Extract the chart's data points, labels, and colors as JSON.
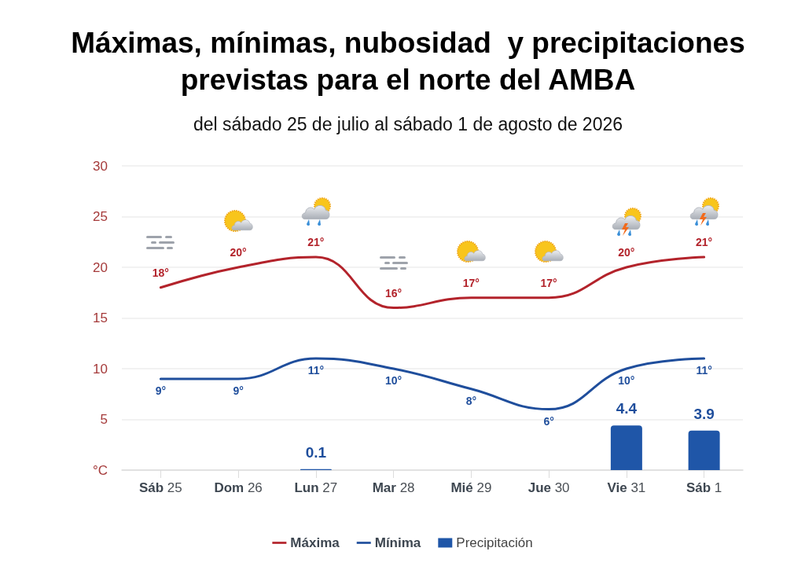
{
  "chart_data": {
    "type": "line",
    "title": "Máximas, mínimas, nubosidad  y precipitaciones previstas para el norte del AMBA",
    "subtitle": "del sábado 25 de julio al sábado 1 de agosto de 2026",
    "categories": [
      "Sáb 25",
      "Dom 26",
      "Lun 27",
      "Mar 28",
      "Mié 29",
      "Jue 30",
      "Vie 31",
      "Sáb 1"
    ],
    "series": [
      {
        "name": "Máxima",
        "color": "#b3232b",
        "values": [
          18,
          20,
          21,
          16,
          17,
          17,
          20,
          21
        ],
        "value_labels": [
          "18°",
          "20°",
          "21°",
          "16°",
          "17°",
          "17°",
          "20°",
          "21°"
        ]
      },
      {
        "name": "Mínima",
        "color": "#1f4e9c",
        "values": [
          9,
          9,
          11,
          10,
          8,
          6,
          10,
          11
        ],
        "value_labels": [
          "9°",
          "9°",
          "11°",
          "10°",
          "8°",
          "6°",
          "10°",
          "11°"
        ]
      },
      {
        "name": "Precipitación",
        "type": "bar",
        "color": "#1f56a8",
        "values": [
          null,
          null,
          0.1,
          null,
          null,
          null,
          4.4,
          3.9
        ],
        "value_labels": [
          null,
          null,
          "0.1",
          null,
          null,
          null,
          "4.4",
          "3.9"
        ]
      }
    ],
    "ylim": [
      0,
      30
    ],
    "yticks": [
      {
        "value": 0,
        "label": "°C"
      },
      5,
      10,
      15,
      20,
      25,
      30
    ],
    "grid": "y",
    "legend": "bottom",
    "marker": "none",
    "line_style": "solid"
  }
}
